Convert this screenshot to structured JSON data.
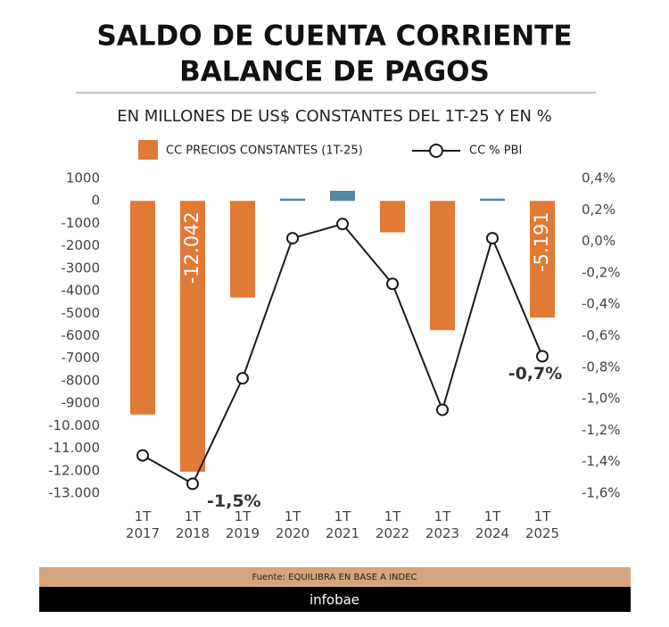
{
  "chart_data": {
    "type": "bar_line",
    "title": [
      "SALDO DE CUENTA CORRIENTE",
      "BALANCE DE PAGOS"
    ],
    "subtitle": "EN MILLONES DE US$ CONSTANTES DEL 1T-25 Y EN %",
    "categories": [
      "1T 2017",
      "1T 2018",
      "1T 2019",
      "1T 2020",
      "1T 2021",
      "1T 2022",
      "1T 2023",
      "1T 2024",
      "1T 2025"
    ],
    "series": [
      {
        "name": "CC PRECIOS CONSTANTES (1T-25)",
        "type": "bar",
        "color": "#e07a36",
        "colors": [
          "#e07a36",
          "#e07a36",
          "#e07a36",
          "#5189a6",
          "#5189a6",
          "#e07a36",
          "#e07a36",
          "#5189a6",
          "#e07a36"
        ],
        "values": [
          -9500,
          -12042,
          -4300,
          100,
          450,
          -1400,
          -5750,
          100,
          -5191
        ],
        "value_labels": [
          null,
          "-12.042",
          null,
          null,
          null,
          null,
          null,
          null,
          "-5.191"
        ]
      },
      {
        "name": "CC % PBI",
        "type": "line",
        "axis": "y2",
        "color": "#1a1a1a",
        "values": [
          -1.36,
          -1.54,
          -0.87,
          0.02,
          0.11,
          -0.27,
          -1.07,
          0.02,
          -0.73
        ],
        "value_labels": [
          null,
          "-1,5%",
          null,
          null,
          null,
          null,
          null,
          null,
          "-0,7%"
        ]
      }
    ],
    "ylim": [
      1000,
      -13000
    ],
    "yticks": [
      1000,
      0,
      -1000,
      -2000,
      -3000,
      -4000,
      -5000,
      -6000,
      -7000,
      -8000,
      -9000,
      {
        "value": -10000,
        "label": "-10.000"
      },
      {
        "value": -11000,
        "label": "-11.000"
      },
      {
        "value": -12000,
        "label": "-12.000"
      },
      {
        "value": -13000,
        "label": "-13.000"
      }
    ],
    "y2lim": [
      0.4,
      -1.6
    ],
    "y2ticks": [
      {
        "value": 0.4,
        "label": "0,4%"
      },
      {
        "value": 0.2,
        "label": "0,2%"
      },
      {
        "value": 0,
        "label": "0,0%"
      },
      {
        "value": -0.2,
        "label": "-0,2%"
      },
      {
        "value": -0.4,
        "label": "-0,4%"
      },
      {
        "value": -0.6,
        "label": "-0,6%"
      },
      {
        "value": -0.8,
        "label": "-0,8%"
      },
      {
        "value": -1.0,
        "label": "-1,0%"
      },
      {
        "value": -1.2,
        "label": "-1,2%"
      },
      {
        "value": -1.4,
        "label": "-1,4%"
      },
      {
        "value": -1.6,
        "label": "-1,6%"
      }
    ],
    "grid": false,
    "source": "Fuente: EQUILIBRA EN BASE A INDEC",
    "brand": "infobae"
  }
}
